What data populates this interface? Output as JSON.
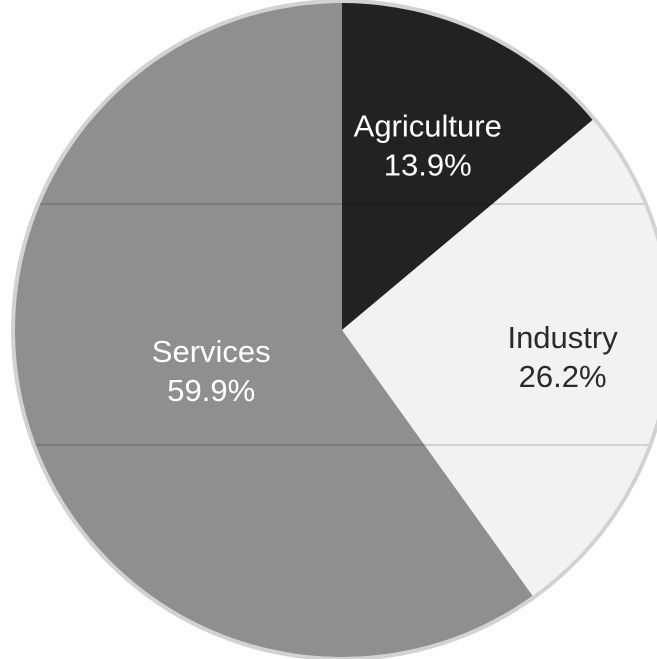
{
  "chart_data": {
    "type": "pie",
    "title": "",
    "slices": [
      {
        "label": "Agriculture",
        "value": 13.9,
        "value_label": "13.9%",
        "color": "#222222",
        "text_color": "#ffffff"
      },
      {
        "label": "Industry",
        "value": 26.2,
        "value_label": "26.2%",
        "color": "#f2f2f2",
        "text_color": "#2a2a2a"
      },
      {
        "label": "Services",
        "value": 59.9,
        "value_label": "59.9%",
        "color": "#8f8f8f",
        "text_color": "#ffffff"
      }
    ],
    "start_angle_deg": 0,
    "direction": "clockwise",
    "legend": "none",
    "outline_color": "#d2d2d2"
  }
}
